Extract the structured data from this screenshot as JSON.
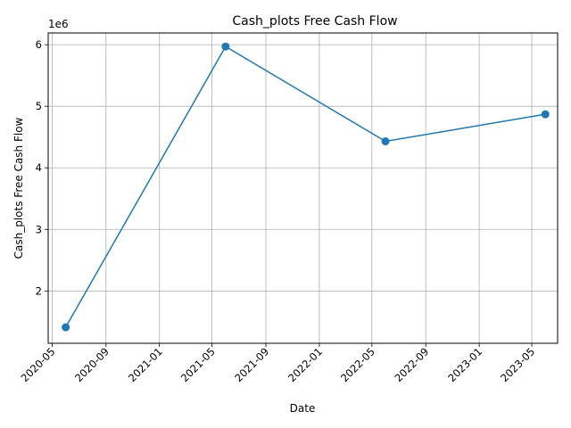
{
  "chart_data": {
    "type": "line",
    "title": "Cash_plots Free Cash Flow",
    "xlabel": "Date",
    "ylabel": "Cash_plots Free Cash Flow",
    "y_offset_label": "1e6",
    "x_ticks": [
      "2020-05",
      "2020-09",
      "2021-01",
      "2021-05",
      "2021-09",
      "2022-01",
      "2022-05",
      "2022-09",
      "2023-01",
      "2023-05"
    ],
    "y_ticks": [
      "2",
      "3",
      "4",
      "5",
      "6"
    ],
    "xlim": [
      "2020-04-22",
      "2023-06-29"
    ],
    "ylim": [
      1150000,
      6190000
    ],
    "grid": true,
    "color": "#1f77b4",
    "series": [
      {
        "points": [
          {
            "x": "2020-06-01",
            "y": 1410000
          },
          {
            "x": "2021-06-01",
            "y": 5970000
          },
          {
            "x": "2022-06-01",
            "y": 4430000
          },
          {
            "x": "2023-06-01",
            "y": 4870000
          }
        ]
      }
    ]
  }
}
